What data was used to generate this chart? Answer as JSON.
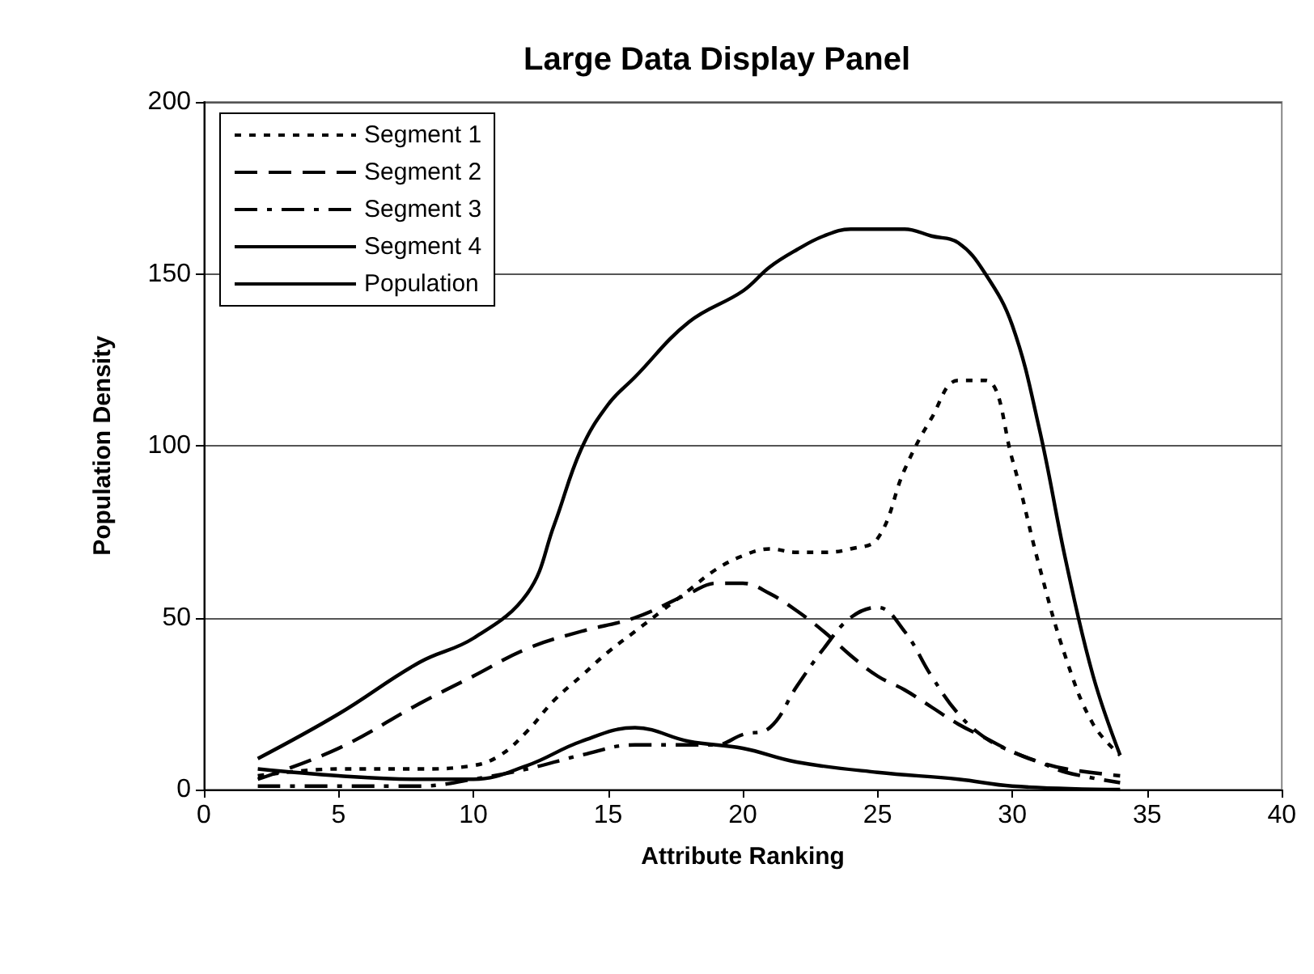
{
  "chart_data": {
    "type": "line",
    "title": "Large Data Display Panel",
    "xlabel": "Attribute Ranking",
    "ylabel": "Population Density",
    "xlim": [
      0,
      40
    ],
    "xticks": [
      0,
      5,
      10,
      15,
      20,
      25,
      30,
      35,
      40
    ],
    "ylim": [
      0,
      200
    ],
    "yticks": [
      0,
      50,
      100,
      150,
      200
    ],
    "grid": "y",
    "legend": "top left",
    "marker": "none",
    "series": [
      {
        "name": "Segment 1",
        "color": "#000000",
        "line_style": "dotted",
        "x": [
          2,
          5,
          8,
          10,
          11,
          12,
          13,
          14,
          15,
          16,
          17,
          18,
          19,
          20,
          21,
          22,
          23,
          24,
          25,
          26,
          27,
          28,
          29,
          30,
          31,
          32,
          33,
          34
        ],
        "values": [
          4,
          6,
          6,
          7,
          10,
          17,
          26,
          33,
          40,
          46,
          52,
          58,
          64,
          68,
          70,
          69,
          69,
          70,
          73,
          93,
          108,
          119,
          119,
          96,
          65,
          38,
          19,
          10
        ]
      },
      {
        "name": "Segment 2",
        "color": "#000000",
        "line_style": "dashed",
        "x": [
          2,
          5,
          8,
          10,
          12,
          14,
          16,
          18,
          19,
          20,
          21,
          22,
          23,
          24,
          25,
          26,
          27,
          28,
          29,
          30,
          31,
          32,
          34
        ],
        "values": [
          3,
          12,
          25,
          33,
          41,
          46,
          50,
          57,
          60,
          60,
          57,
          52,
          46,
          39,
          33,
          29,
          24,
          19,
          15,
          11,
          8,
          6,
          4
        ]
      },
      {
        "name": "Segment 3",
        "color": "#000000",
        "line_style": "dashdot",
        "x": [
          2,
          5,
          8,
          10,
          12,
          14,
          16,
          18,
          19,
          20,
          21,
          22,
          23,
          24,
          25,
          26,
          27,
          28,
          29,
          30,
          31,
          32,
          34
        ],
        "values": [
          1,
          1,
          1,
          3,
          6,
          10,
          13,
          13,
          13,
          16,
          18,
          30,
          41,
          50,
          53,
          46,
          33,
          22,
          15,
          11,
          8,
          5,
          2
        ]
      },
      {
        "name": "Segment 4",
        "color": "#000000",
        "line_style": "solid",
        "x": [
          2,
          5,
          8,
          10,
          12,
          14,
          16,
          18,
          20,
          22,
          25,
          28,
          30,
          34
        ],
        "values": [
          6,
          4,
          3,
          3,
          7,
          14,
          18,
          14,
          12,
          8,
          5,
          3,
          1,
          0
        ]
      },
      {
        "name": "Population",
        "color": "#000000",
        "line_style": "solid",
        "x": [
          2,
          5,
          8,
          10,
          12,
          13,
          14,
          15,
          16,
          18,
          20,
          21,
          22,
          23,
          24,
          25,
          26,
          27,
          28,
          29,
          30,
          31,
          32,
          33,
          34
        ],
        "values": [
          9,
          22,
          37,
          44,
          57,
          77,
          99,
          112,
          120,
          136,
          145,
          152,
          157,
          161,
          163,
          163,
          163,
          161,
          159,
          150,
          135,
          105,
          66,
          33,
          10
        ]
      }
    ]
  }
}
